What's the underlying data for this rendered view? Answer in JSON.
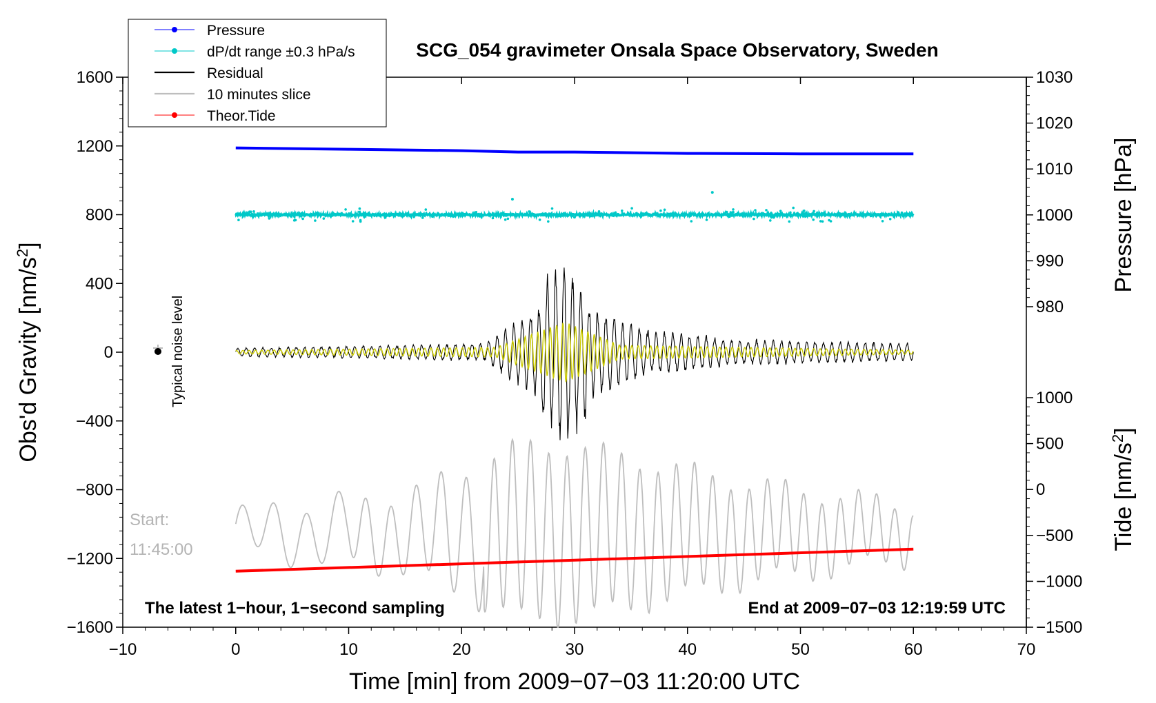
{
  "chart_data": {
    "type": "line",
    "title": "SCG_054 gravimeter Onsala Space Observatory, Sweden",
    "xlabel": "Time [min] from 2009−07−03 11:20:00 UTC",
    "ylabel_left": "Obs'd Gravity [nm/s",
    "ylabel_left_sup": "2",
    "ylabel_left_end": "]",
    "ylabel_right_pressure": "Pressure [hPa]",
    "ylabel_right_tide": "Tide [nm/s",
    "ylabel_right_tide_sup": "2",
    "ylabel_right_tide_end": "]",
    "xlim": [
      -10,
      70
    ],
    "ylim_left": [
      -1600,
      1600
    ],
    "x_ticks": [
      -10,
      0,
      10,
      20,
      30,
      40,
      50,
      60,
      70
    ],
    "x_tick_labels": [
      "−10",
      "0",
      "10",
      "20",
      "30",
      "40",
      "50",
      "60",
      "70"
    ],
    "y_left_ticks": [
      1600,
      1200,
      800,
      400,
      0,
      -400,
      -800,
      -1200,
      -1600
    ],
    "y_left_tick_labels": [
      "1600",
      "1200",
      "800",
      "400",
      "0",
      "−400",
      "−800",
      "−1200",
      "−1600"
    ],
    "pressure_axis_ticks": [
      1030,
      1020,
      1010,
      1000,
      990,
      980
    ],
    "pressure_axis_tick_labels": [
      "1030",
      "1020",
      "1010",
      "1000",
      "990",
      "980"
    ],
    "tide_axis_ticks": [
      1000,
      500,
      0,
      -500,
      -1000,
      -1500
    ],
    "tide_axis_tick_labels": [
      "1000",
      "500",
      "0",
      "−500",
      "−1000",
      "−1500"
    ],
    "legend_position": "top-left",
    "legend": [
      {
        "label": "Pressure",
        "color": "#0000ff",
        "marker": true
      },
      {
        "label": "dP/dt range ±0.3 hPa/s",
        "color": "#00c8c8",
        "marker": true
      },
      {
        "label": "Residual",
        "color": "#000000",
        "marker": false
      },
      {
        "label": "10 minutes slice",
        "color": "#bebebe",
        "marker": false
      },
      {
        "label": "Theor.Tide",
        "color": "#ff0000",
        "marker": true
      }
    ],
    "series": [
      {
        "name": "Pressure",
        "axis": "pressure",
        "color": "#0000ff",
        "x": [
          0,
          10,
          20,
          25,
          30,
          40,
          50,
          60
        ],
        "values": [
          1014.6,
          1014.3,
          1014.0,
          1013.7,
          1013.7,
          1013.4,
          1013.3,
          1013.3
        ]
      },
      {
        "name": "dP/dt range ±0.3 hPa/s",
        "axis": "left",
        "color": "#00c8c8",
        "center": 800,
        "spread": 15,
        "x_range": [
          0,
          60
        ]
      },
      {
        "name": "Residual",
        "axis": "left",
        "color": "#000000",
        "x_range": [
          0,
          60
        ],
        "peak_amplitude": 560,
        "peak_time": 29.2
      },
      {
        "name": "Yellow overlay",
        "axis": "left",
        "color": "#cccc00",
        "x_range": [
          0,
          60
        ],
        "peak_amplitude": 180,
        "peak_time": 29.2
      },
      {
        "name": "10 minutes slice",
        "axis": "left",
        "color": "#bebebe",
        "x_range": [
          0,
          60
        ],
        "baseline": -1050,
        "peak_amplitude": 500
      },
      {
        "name": "Theor.Tide",
        "axis": "tide",
        "color": "#ff0000",
        "x": [
          0,
          60
        ],
        "values": [
          -890,
          -650
        ]
      }
    ],
    "annotations": {
      "noise_label": "Typical noise level",
      "noise_value": 0,
      "noise_x": -7,
      "start_label": "Start:",
      "start_time": "11:45:00",
      "bottom_left_note": "The latest 1−hour, 1−second sampling",
      "bottom_right_note": "End at 2009−07−03 12:19:59 UTC"
    }
  }
}
